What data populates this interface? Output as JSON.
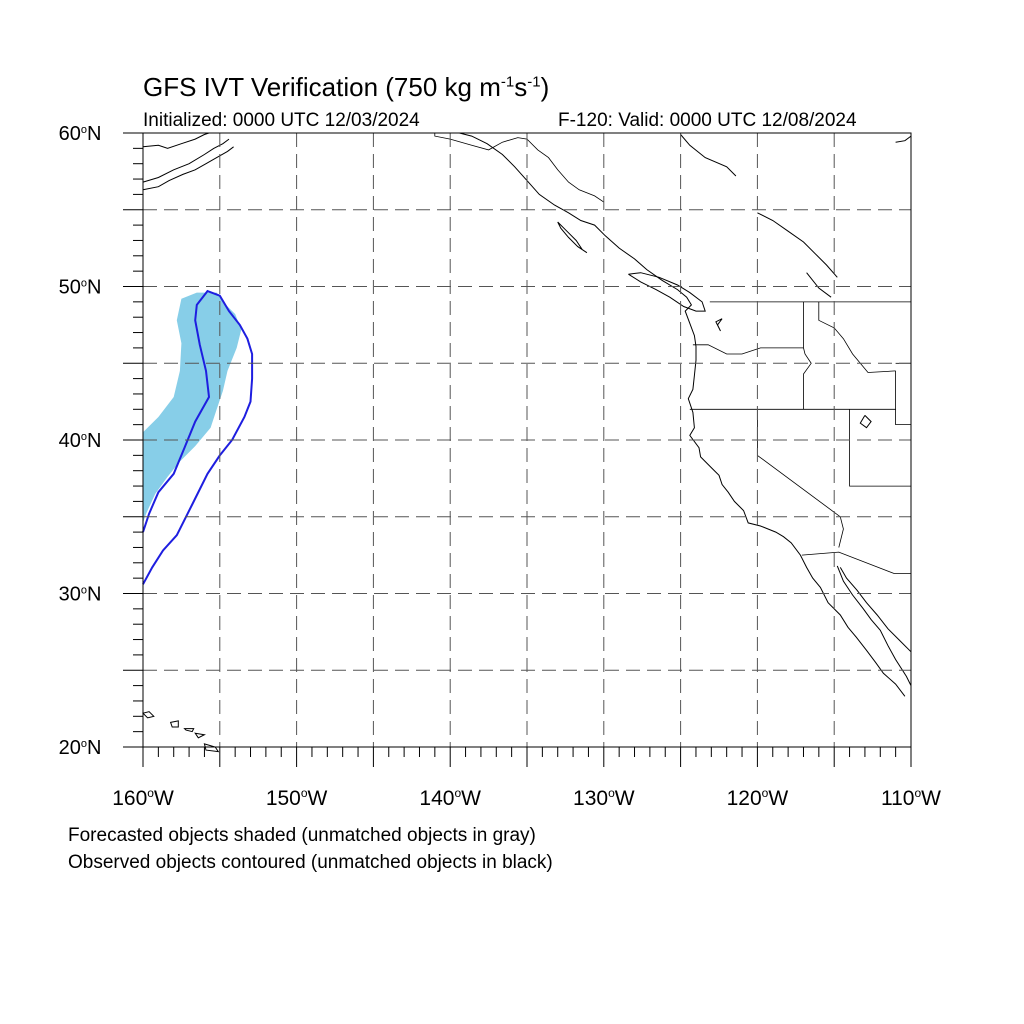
{
  "title": {
    "prefix": "GFS IVT Verification (750 kg m",
    "exp1": "-1",
    "mid": "s",
    "exp2": "-1",
    "suffix": ")"
  },
  "subtitle": {
    "initialized": "Initialized: 0000 UTC 12/03/2024",
    "valid": "F-120: Valid: 0000 UTC 12/08/2024"
  },
  "map": {
    "lon_range": [
      -160,
      -110
    ],
    "lat_range": [
      20,
      60
    ],
    "lat_labels": [
      {
        "lat": 60,
        "text": "60"
      },
      {
        "lat": 50,
        "text": "50"
      },
      {
        "lat": 40,
        "text": "40"
      },
      {
        "lat": 30,
        "text": "30"
      },
      {
        "lat": 20,
        "text": "20"
      }
    ],
    "lat_suffix": "N",
    "lon_labels": [
      {
        "lon": -160,
        "text": "160"
      },
      {
        "lon": -150,
        "text": "150"
      },
      {
        "lon": -140,
        "text": "140"
      },
      {
        "lon": -130,
        "text": "130"
      },
      {
        "lon": -120,
        "text": "120"
      },
      {
        "lon": -110,
        "text": "110"
      }
    ],
    "lon_suffix": "W",
    "grid": "dashed, every 5 degrees",
    "colors": {
      "forecast_fill": "#87CEE8",
      "observed_contour": "#1E1EE0",
      "coastline": "#000000",
      "grid": "#555555"
    },
    "forecast_object": [
      [
        -157.5,
        49.2
      ],
      [
        -156.5,
        49.6
      ],
      [
        -155.2,
        49.6
      ],
      [
        -154.6,
        48.8
      ],
      [
        -154.0,
        48.2
      ],
      [
        -153.6,
        47.2
      ],
      [
        -153.9,
        46.0
      ],
      [
        -154.5,
        44.5
      ],
      [
        -154.8,
        43.2
      ],
      [
        -155.2,
        42.0
      ],
      [
        -155.6,
        40.8
      ],
      [
        -156.6,
        39.6
      ],
      [
        -157.6,
        38.6
      ],
      [
        -158.4,
        37.6
      ],
      [
        -159.2,
        36.5
      ],
      [
        -159.8,
        35.2
      ],
      [
        -160.0,
        34.6
      ],
      [
        -160.0,
        40.5
      ],
      [
        -159.0,
        41.5
      ],
      [
        -158.0,
        42.8
      ],
      [
        -157.6,
        44.5
      ],
      [
        -157.5,
        46.3
      ],
      [
        -157.8,
        47.8
      ]
    ],
    "observed_object_inner": [
      [
        -160.0,
        34.0
      ],
      [
        -159.6,
        35.2
      ],
      [
        -159.0,
        36.6
      ],
      [
        -158.0,
        37.8
      ],
      [
        -157.3,
        39.5
      ],
      [
        -156.6,
        41.2
      ],
      [
        -155.7,
        42.8
      ],
      [
        -155.9,
        44.5
      ],
      [
        -156.3,
        46.2
      ],
      [
        -156.6,
        47.8
      ],
      [
        -156.5,
        48.8
      ],
      [
        -155.8,
        49.7
      ],
      [
        -155.0,
        49.4
      ],
      [
        -154.4,
        48.4
      ],
      [
        -153.7,
        47.5
      ],
      [
        -153.2,
        46.6
      ],
      [
        -152.9,
        45.6
      ],
      [
        -152.9,
        44.0
      ],
      [
        -153.0,
        42.5
      ],
      [
        -153.4,
        41.5
      ],
      [
        -154.2,
        40.0
      ],
      [
        -155.0,
        39.0
      ],
      [
        -155.8,
        37.8
      ],
      [
        -156.8,
        35.8
      ],
      [
        -157.8,
        33.8
      ],
      [
        -158.7,
        32.8
      ],
      [
        -159.4,
        31.7
      ],
      [
        -160.0,
        30.6
      ]
    ],
    "islands": [
      [
        [
          -160.0,
          22.2
        ],
        [
          -159.6,
          22.3
        ],
        [
          -159.3,
          22.0
        ],
        [
          -159.7,
          21.9
        ]
      ],
      [
        [
          -158.2,
          21.6
        ],
        [
          -157.7,
          21.7
        ],
        [
          -157.7,
          21.3
        ],
        [
          -158.1,
          21.3
        ]
      ],
      [
        [
          -157.3,
          21.2
        ],
        [
          -156.7,
          21.2
        ],
        [
          -156.8,
          21.0
        ],
        [
          -157.2,
          21.1
        ]
      ],
      [
        [
          -156.6,
          20.9
        ],
        [
          -156.0,
          20.8
        ],
        [
          -156.4,
          20.6
        ]
      ],
      [
        [
          -156.0,
          20.2
        ],
        [
          -155.3,
          20.0
        ],
        [
          -155.1,
          19.7
        ],
        [
          -155.9,
          19.8
        ]
      ]
    ],
    "coast_segments": [
      [
        [
          -160.0,
          59.1
        ],
        [
          -159.0,
          59.2
        ],
        [
          -158.4,
          59.0
        ],
        [
          -157.5,
          59.3
        ],
        [
          -156.6,
          59.6
        ],
        [
          -156.0,
          59.9
        ],
        [
          -155.7,
          60.0
        ]
      ],
      [
        [
          -160.0,
          56.8
        ],
        [
          -159.0,
          57.1
        ],
        [
          -158.0,
          57.6
        ],
        [
          -157.0,
          58.0
        ],
        [
          -156.0,
          58.6
        ],
        [
          -155.4,
          59.0
        ],
        [
          -154.8,
          59.3
        ],
        [
          -154.4,
          59.6
        ]
      ],
      [
        [
          -160.0,
          56.3
        ],
        [
          -159.0,
          56.5
        ],
        [
          -158.3,
          56.9
        ],
        [
          -157.4,
          57.3
        ],
        [
          -156.6,
          57.6
        ],
        [
          -155.9,
          58.0
        ],
        [
          -155.2,
          58.4
        ],
        [
          -154.5,
          58.8
        ],
        [
          -154.1,
          59.1
        ]
      ],
      [
        [
          -139.4,
          60.0
        ],
        [
          -138.6,
          59.8
        ],
        [
          -137.6,
          59.3
        ],
        [
          -136.6,
          58.6
        ],
        [
          -135.8,
          57.8
        ],
        [
          -135.0,
          56.9
        ],
        [
          -134.2,
          56.0
        ],
        [
          -133.2,
          55.3
        ],
        [
          -132.3,
          54.8
        ],
        [
          -131.5,
          54.3
        ],
        [
          -130.6,
          54.0
        ],
        [
          -129.9,
          53.3
        ],
        [
          -129.0,
          52.5
        ],
        [
          -128.0,
          51.8
        ],
        [
          -127.2,
          51.1
        ],
        [
          -126.2,
          50.4
        ],
        [
          -125.2,
          49.8
        ],
        [
          -124.6,
          49.3
        ],
        [
          -124.3,
          48.8
        ],
        [
          -124.7,
          48.4
        ],
        [
          -124.4,
          47.6
        ],
        [
          -124.1,
          46.8
        ],
        [
          -124.0,
          46.1
        ],
        [
          -124.0,
          45.2
        ],
        [
          -124.1,
          44.2
        ],
        [
          -124.2,
          43.3
        ],
        [
          -124.5,
          42.7
        ],
        [
          -124.2,
          41.8
        ],
        [
          -124.1,
          40.8
        ],
        [
          -124.4,
          40.3
        ],
        [
          -123.8,
          39.5
        ],
        [
          -123.7,
          38.9
        ],
        [
          -123.0,
          38.2
        ],
        [
          -122.5,
          37.7
        ],
        [
          -122.3,
          37.1
        ],
        [
          -121.9,
          36.6
        ],
        [
          -121.5,
          36.0
        ],
        [
          -120.9,
          35.4
        ],
        [
          -120.6,
          34.6
        ],
        [
          -119.8,
          34.4
        ],
        [
          -118.8,
          34.0
        ],
        [
          -118.3,
          33.7
        ],
        [
          -117.8,
          33.3
        ],
        [
          -117.2,
          32.5
        ],
        [
          -116.8,
          31.7
        ],
        [
          -116.4,
          31.0
        ],
        [
          -115.9,
          30.4
        ],
        [
          -115.4,
          29.4
        ],
        [
          -114.6,
          28.6
        ],
        [
          -114.1,
          27.8
        ],
        [
          -113.6,
          27.2
        ],
        [
          -112.9,
          26.3
        ],
        [
          -112.3,
          25.5
        ],
        [
          -111.8,
          24.8
        ],
        [
          -111.0,
          24.1
        ],
        [
          -110.4,
          23.3
        ]
      ],
      [
        [
          -114.6,
          31.7
        ],
        [
          -114.2,
          31.0
        ],
        [
          -113.5,
          30.2
        ],
        [
          -112.9,
          29.4
        ],
        [
          -112.2,
          28.6
        ],
        [
          -111.5,
          27.7
        ],
        [
          -110.8,
          27.0
        ],
        [
          -110.0,
          26.2
        ]
      ],
      [
        [
          -114.8,
          31.8
        ],
        [
          -114.4,
          30.8
        ],
        [
          -113.8,
          29.9
        ],
        [
          -113.1,
          29.0
        ],
        [
          -112.6,
          28.3
        ],
        [
          -112.0,
          27.6
        ],
        [
          -111.5,
          26.6
        ],
        [
          -111.0,
          25.7
        ],
        [
          -110.3,
          24.6
        ],
        [
          -110.0,
          24.0
        ]
      ],
      [
        [
          -128.4,
          50.8
        ],
        [
          -127.6,
          50.3
        ],
        [
          -126.6,
          49.8
        ],
        [
          -125.7,
          49.3
        ],
        [
          -124.8,
          48.7
        ],
        [
          -124.0,
          48.4
        ],
        [
          -123.4,
          48.4
        ],
        [
          -123.6,
          49.0
        ],
        [
          -124.4,
          49.6
        ],
        [
          -125.2,
          50.1
        ],
        [
          -126.4,
          50.6
        ],
        [
          -127.6,
          50.9
        ],
        [
          -128.4,
          50.8
        ]
      ],
      [
        [
          -133.0,
          54.2
        ],
        [
          -132.4,
          53.6
        ],
        [
          -131.8,
          53.0
        ],
        [
          -131.4,
          52.4
        ],
        [
          -131.1,
          52.2
        ],
        [
          -131.7,
          52.6
        ],
        [
          -132.3,
          53.2
        ],
        [
          -132.8,
          53.8
        ],
        [
          -133.0,
          54.2
        ]
      ],
      [
        [
          -125.0,
          59.9
        ],
        [
          -124.4,
          59.2
        ],
        [
          -123.4,
          58.4
        ],
        [
          -122.0,
          57.8
        ],
        [
          -121.4,
          57.2
        ]
      ],
      [
        [
          -120.0,
          54.8
        ],
        [
          -119.0,
          54.3
        ],
        [
          -118.0,
          53.6
        ],
        [
          -117.0,
          52.9
        ],
        [
          -116.2,
          52.1
        ],
        [
          -115.5,
          51.4
        ],
        [
          -114.8,
          50.6
        ]
      ],
      [
        [
          -116.8,
          50.9
        ],
        [
          -116.0,
          49.9
        ],
        [
          -115.2,
          49.3
        ]
      ],
      [
        [
          -111.0,
          59.4
        ],
        [
          -110.4,
          59.5
        ],
        [
          -110.0,
          59.8
        ]
      ],
      [
        [
          -113.0,
          41.6
        ],
        [
          -112.6,
          41.2
        ],
        [
          -112.9,
          40.8
        ],
        [
          -113.3,
          41.1
        ],
        [
          -113.0,
          41.6
        ]
      ],
      [
        [
          -122.3,
          47.9
        ],
        [
          -122.6,
          47.5
        ],
        [
          -122.4,
          47.1
        ],
        [
          -122.7,
          47.7
        ],
        [
          -122.3,
          47.9
        ]
      ]
    ],
    "borders": [
      [
        [
          -141.0,
          60.0
        ],
        [
          -141.0,
          59.8
        ],
        [
          -140.0,
          59.6
        ],
        [
          -138.6,
          59.2
        ],
        [
          -137.5,
          58.9
        ],
        [
          -136.6,
          59.4
        ],
        [
          -135.6,
          59.7
        ],
        [
          -135.0,
          59.6
        ],
        [
          -134.3,
          58.9
        ],
        [
          -133.6,
          58.4
        ],
        [
          -133.0,
          57.6
        ],
        [
          -132.3,
          56.8
        ],
        [
          -131.6,
          56.3
        ],
        [
          -130.6,
          55.9
        ],
        [
          -130.0,
          55.5
        ]
      ],
      [
        [
          -123.1,
          49.0
        ],
        [
          -110.0,
          49.0
        ]
      ],
      [
        [
          -117.0,
          49.0
        ],
        [
          -117.0,
          46.0
        ],
        [
          -116.9,
          45.6
        ],
        [
          -116.5,
          45.0
        ],
        [
          -117.0,
          44.3
        ],
        [
          -117.0,
          42.0
        ]
      ],
      [
        [
          -124.2,
          46.2
        ],
        [
          -123.2,
          46.2
        ],
        [
          -122.0,
          45.6
        ],
        [
          -121.0,
          45.6
        ],
        [
          -119.8,
          46.0
        ],
        [
          -118.8,
          46.0
        ],
        [
          -117.0,
          46.0
        ]
      ],
      [
        [
          -124.4,
          42.0
        ],
        [
          -111.0,
          42.0
        ]
      ],
      [
        [
          -120.0,
          42.0
        ],
        [
          -120.0,
          39.0
        ],
        [
          -114.6,
          35.0
        ],
        [
          -114.4,
          34.2
        ],
        [
          -114.7,
          33.0
        ]
      ],
      [
        [
          -117.1,
          32.5
        ],
        [
          -114.7,
          32.7
        ],
        [
          -111.1,
          31.3
        ],
        [
          -110.0,
          31.3
        ]
      ],
      [
        [
          -114.0,
          42.0
        ],
        [
          -114.0,
          37.0
        ],
        [
          -110.0,
          37.0
        ]
      ],
      [
        [
          -116.0,
          49.0
        ],
        [
          -116.0,
          47.8
        ],
        [
          -115.0,
          47.3
        ],
        [
          -114.4,
          46.6
        ],
        [
          -113.8,
          45.6
        ],
        [
          -112.8,
          44.4
        ],
        [
          -111.0,
          44.5
        ]
      ],
      [
        [
          -111.0,
          44.5
        ],
        [
          -111.0,
          41.0
        ],
        [
          -110.0,
          41.0
        ]
      ],
      [
        [
          -111.0,
          45.0
        ],
        [
          -110.0,
          45.0
        ]
      ]
    ]
  },
  "notes": [
    "Forecasted objects shaded (unmatched objects in gray)",
    "Observed objects contoured (unmatched objects in black)"
  ]
}
